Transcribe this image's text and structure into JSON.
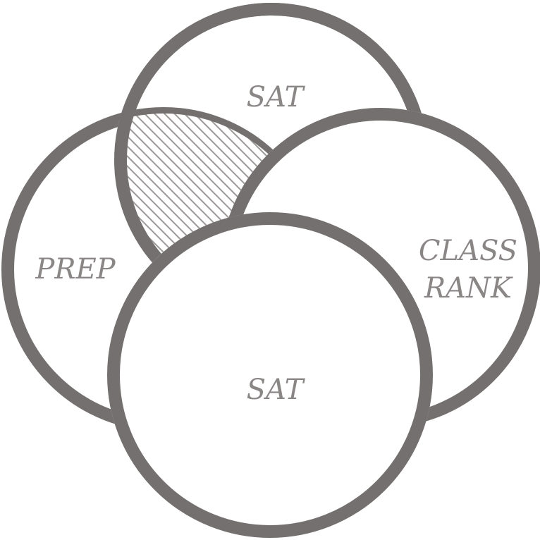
{
  "colors": {
    "stroke": "#757070",
    "text": "#8a8686",
    "hatch": "#9d9999",
    "background": "#ffffff"
  },
  "labels": {
    "top": "SAT",
    "left": "PREP",
    "right_line1": "CLASS",
    "right_line2": "RANK",
    "bottom": "SAT"
  },
  "highlight": {
    "pattern": "diagonal-hatch",
    "region": "left-top-overlap"
  }
}
